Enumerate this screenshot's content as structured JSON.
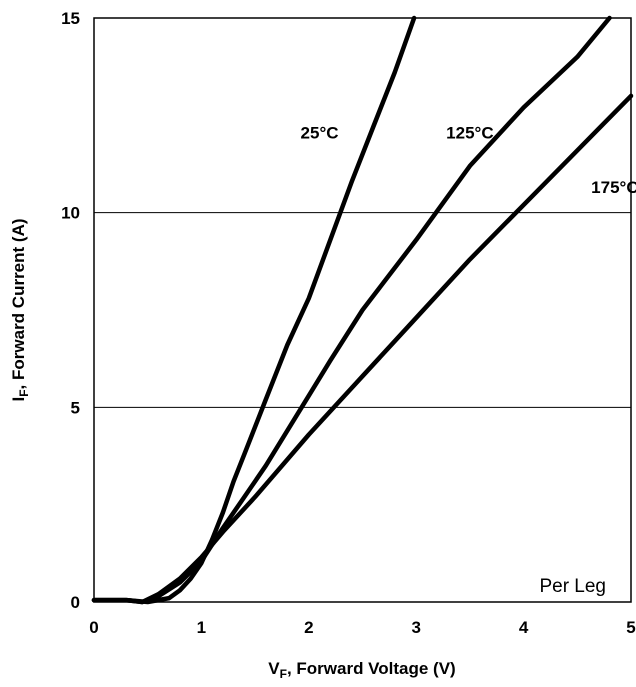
{
  "chart_data": {
    "type": "line",
    "x_axis": {
      "label_main": "V",
      "label_sub": "F",
      "label_rest": ", Forward Voltage (V)",
      "range": [
        0,
        5
      ],
      "ticks": [
        "0",
        "1",
        "2",
        "3",
        "4",
        "5"
      ]
    },
    "y_axis": {
      "label_main": "I",
      "label_sub": "F",
      "label_rest": ", Forward Current (A)",
      "range": [
        0,
        15
      ],
      "ticks": [
        "0",
        "5",
        "10",
        "15"
      ]
    },
    "grid": "horizontal",
    "annotation": "Per Leg",
    "series": [
      {
        "name": "25°C",
        "label_at": [
          2.1,
          11.9
        ],
        "points": [
          [
            0,
            0.05
          ],
          [
            0.3,
            0.05
          ],
          [
            0.5,
            0
          ],
          [
            0.7,
            0.1
          ],
          [
            0.8,
            0.3
          ],
          [
            0.9,
            0.6
          ],
          [
            1.0,
            1.0
          ],
          [
            1.1,
            1.6
          ],
          [
            1.2,
            2.3
          ],
          [
            1.3,
            3.1
          ],
          [
            1.4,
            3.8
          ],
          [
            1.5,
            4.5
          ],
          [
            1.6,
            5.2
          ],
          [
            1.8,
            6.6
          ],
          [
            2.0,
            7.8
          ],
          [
            2.2,
            9.3
          ],
          [
            2.4,
            10.8
          ],
          [
            2.6,
            12.2
          ],
          [
            2.8,
            13.6
          ],
          [
            2.98,
            15.0
          ]
        ]
      },
      {
        "name": "125°C",
        "label_at": [
          3.5,
          11.9
        ],
        "points": [
          [
            0,
            0.05
          ],
          [
            0.3,
            0.05
          ],
          [
            0.45,
            0
          ],
          [
            0.6,
            0.15
          ],
          [
            0.8,
            0.5
          ],
          [
            1.0,
            1.05
          ],
          [
            1.2,
            1.9
          ],
          [
            1.4,
            2.7
          ],
          [
            1.6,
            3.5
          ],
          [
            1.8,
            4.4
          ],
          [
            2.0,
            5.3
          ],
          [
            2.2,
            6.2
          ],
          [
            2.5,
            7.5
          ],
          [
            3.0,
            9.3
          ],
          [
            3.5,
            11.2
          ],
          [
            4.0,
            12.7
          ],
          [
            4.5,
            14.0
          ],
          [
            4.8,
            15.0
          ]
        ]
      },
      {
        "name": "175°C",
        "label_at": [
          4.85,
          10.5
        ],
        "points": [
          [
            0,
            0.05
          ],
          [
            0.3,
            0.05
          ],
          [
            0.45,
            0
          ],
          [
            0.6,
            0.2
          ],
          [
            0.8,
            0.6
          ],
          [
            1.0,
            1.15
          ],
          [
            1.2,
            1.8
          ],
          [
            1.5,
            2.7
          ],
          [
            2.0,
            4.3
          ],
          [
            2.5,
            5.8
          ],
          [
            3.0,
            7.3
          ],
          [
            3.5,
            8.8
          ],
          [
            4.0,
            10.2
          ],
          [
            4.5,
            11.6
          ],
          [
            5.0,
            13.0
          ]
        ]
      }
    ]
  }
}
